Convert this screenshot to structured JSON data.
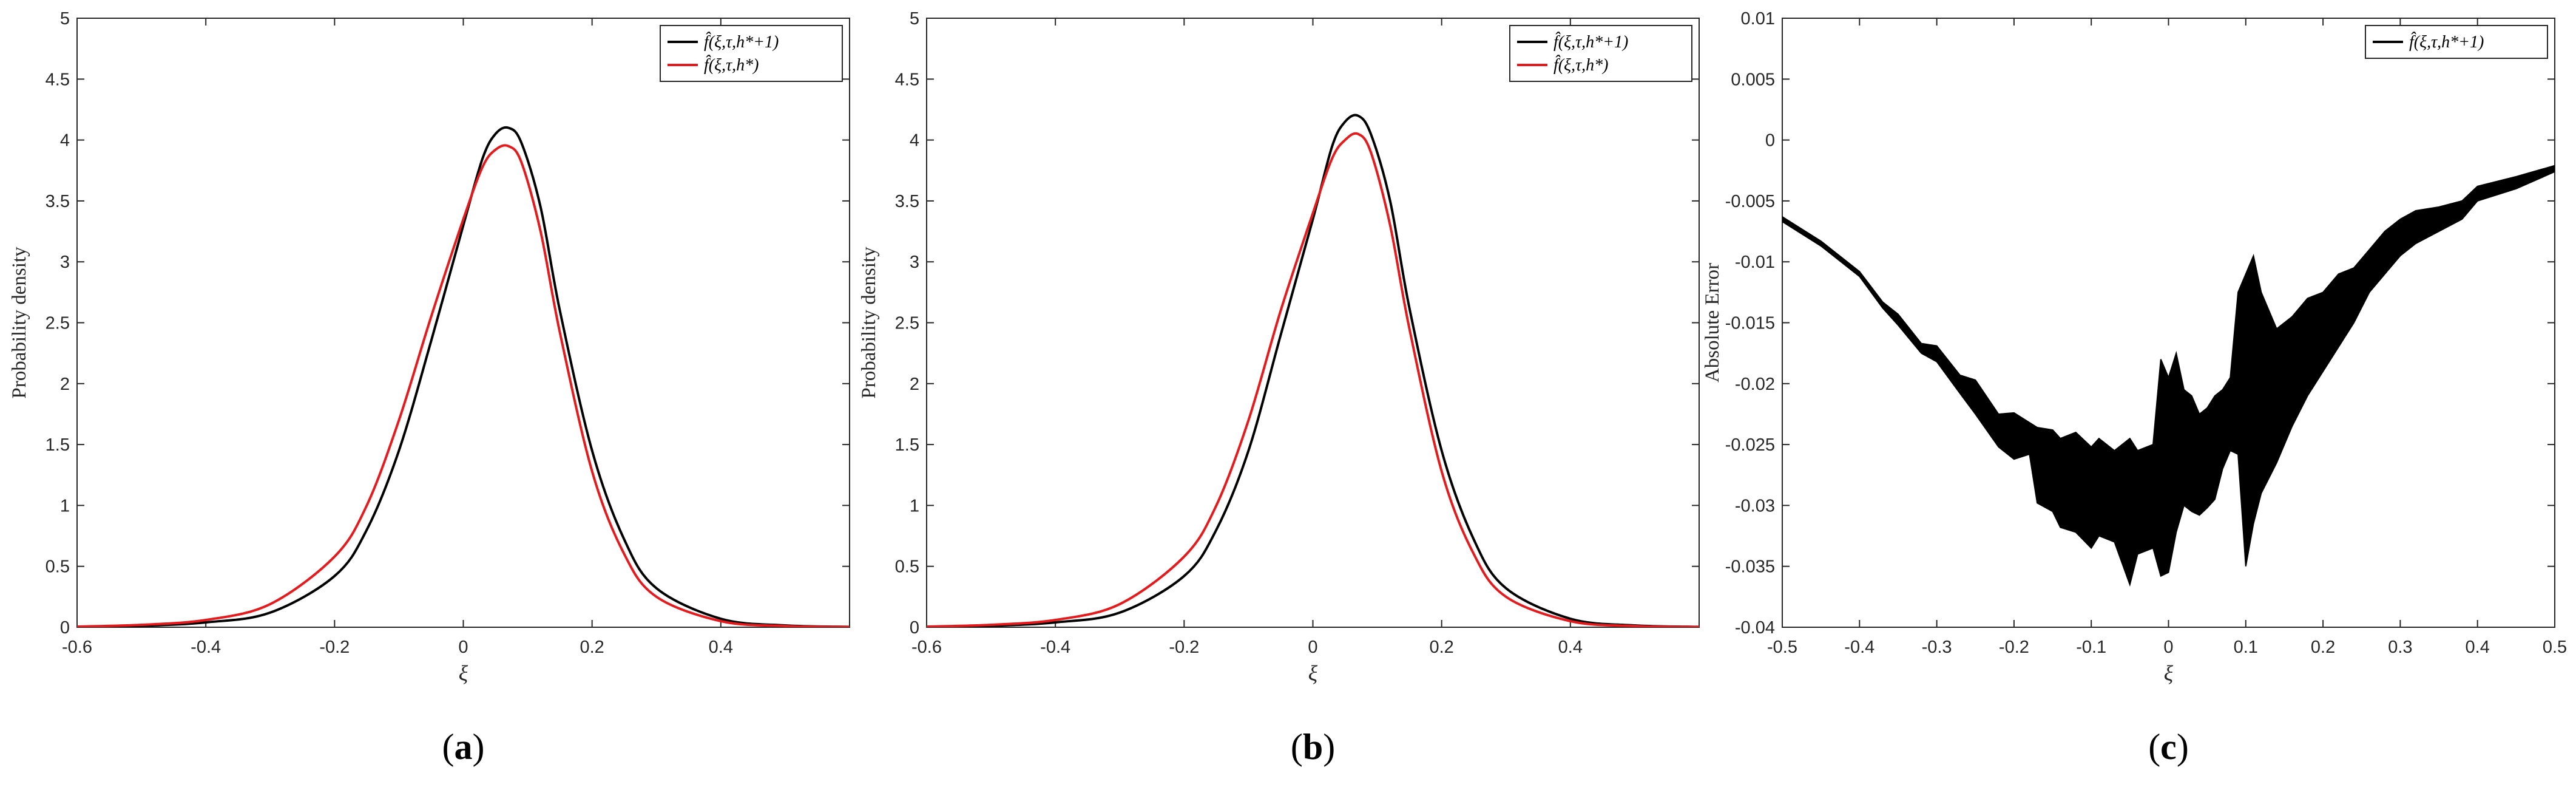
{
  "chart_data": [
    {
      "panel": "(a)",
      "caption": {
        "open": "(",
        "letter": "a",
        "close": ")"
      },
      "type": "line",
      "xlabel": "ξ",
      "ylabel": "Probability density",
      "xlim": [
        -0.6,
        0.6
      ],
      "ylim": [
        0,
        5
      ],
      "xticks": [
        -0.6,
        -0.4,
        -0.2,
        0,
        0.2,
        0.4
      ],
      "xtick_labels": [
        "-0.6",
        "-0.4",
        "-0.2",
        "0",
        "0.2",
        "0.4"
      ],
      "yticks": [
        0,
        0.5,
        1,
        1.5,
        2,
        2.5,
        3,
        3.5,
        4,
        4.5,
        5
      ],
      "ytick_labels": [
        "0",
        "0.5",
        "1",
        "1.5",
        "2",
        "2.5",
        "3",
        "3.5",
        "4",
        "4.5",
        "5"
      ],
      "legend_position": "top-right",
      "series": [
        {
          "name": "f̂(ξ,τ,h*+1)",
          "color": "#000000",
          "x": [
            -0.6,
            -0.5,
            -0.4,
            -0.3,
            -0.2,
            -0.15,
            -0.1,
            -0.05,
            0,
            0.03,
            0.05,
            0.07,
            0.09,
            0.12,
            0.15,
            0.2,
            0.25,
            0.3,
            0.4,
            0.5,
            0.6
          ],
          "y": [
            0.003,
            0.012,
            0.04,
            0.12,
            0.42,
            0.8,
            1.45,
            2.35,
            3.3,
            3.85,
            4.05,
            4.1,
            3.98,
            3.45,
            2.6,
            1.45,
            0.72,
            0.32,
            0.07,
            0.015,
            0.003
          ]
        },
        {
          "name": "f̂(ξ,τ,h*)",
          "color": "#e41a1c",
          "x": [
            -0.6,
            -0.5,
            -0.4,
            -0.3,
            -0.2,
            -0.15,
            -0.1,
            -0.05,
            0,
            0.03,
            0.05,
            0.07,
            0.09,
            0.12,
            0.15,
            0.2,
            0.25,
            0.3,
            0.4,
            0.5,
            0.6
          ],
          "y": [
            0.005,
            0.02,
            0.06,
            0.19,
            0.58,
            1.0,
            1.7,
            2.55,
            3.35,
            3.78,
            3.92,
            3.95,
            3.82,
            3.25,
            2.42,
            1.28,
            0.6,
            0.25,
            0.05,
            0.01,
            0.002
          ]
        }
      ]
    },
    {
      "panel": "(b)",
      "caption": {
        "open": "(",
        "letter": "b",
        "close": ")"
      },
      "type": "line",
      "xlabel": "ξ",
      "ylabel": "Probability density",
      "xlim": [
        -0.6,
        0.6
      ],
      "ylim": [
        0,
        5
      ],
      "xticks": [
        -0.6,
        -0.4,
        -0.2,
        0,
        0.2,
        0.4
      ],
      "xtick_labels": [
        "-0.6",
        "-0.4",
        "-0.2",
        "0",
        "0.2",
        "0.4"
      ],
      "yticks": [
        0,
        0.5,
        1,
        1.5,
        2,
        2.5,
        3,
        3.5,
        4,
        4.5,
        5
      ],
      "ytick_labels": [
        "0",
        "0.5",
        "1",
        "1.5",
        "2",
        "2.5",
        "3",
        "3.5",
        "4",
        "4.5",
        "5"
      ],
      "legend_position": "top-right",
      "series": [
        {
          "name": "f̂(ξ,τ,h*+1)",
          "color": "#000000",
          "x": [
            -0.6,
            -0.5,
            -0.4,
            -0.3,
            -0.2,
            -0.15,
            -0.1,
            -0.05,
            0,
            0.03,
            0.05,
            0.07,
            0.09,
            0.12,
            0.15,
            0.2,
            0.25,
            0.3,
            0.4,
            0.5,
            0.6
          ],
          "y": [
            0.003,
            0.012,
            0.04,
            0.12,
            0.42,
            0.8,
            1.45,
            2.4,
            3.35,
            3.95,
            4.15,
            4.2,
            4.05,
            3.5,
            2.62,
            1.45,
            0.72,
            0.32,
            0.07,
            0.015,
            0.003
          ]
        },
        {
          "name": "f̂(ξ,τ,h*)",
          "color": "#e41a1c",
          "x": [
            -0.6,
            -0.5,
            -0.4,
            -0.3,
            -0.2,
            -0.15,
            -0.1,
            -0.05,
            0,
            0.03,
            0.05,
            0.07,
            0.09,
            0.12,
            0.15,
            0.2,
            0.25,
            0.3,
            0.4,
            0.5,
            0.6
          ],
          "y": [
            0.005,
            0.02,
            0.06,
            0.19,
            0.58,
            1.0,
            1.7,
            2.6,
            3.4,
            3.85,
            4.0,
            4.05,
            3.9,
            3.3,
            2.45,
            1.28,
            0.6,
            0.25,
            0.05,
            0.01,
            0.002
          ]
        }
      ]
    },
    {
      "panel": "(c)",
      "caption": {
        "open": "(",
        "letter": "c",
        "close": ")"
      },
      "type": "line",
      "xlabel": "ξ",
      "ylabel": "Absolute Error",
      "xlim": [
        -0.5,
        0.5
      ],
      "ylim": [
        -0.04,
        0.01
      ],
      "xticks": [
        -0.5,
        -0.4,
        -0.3,
        -0.2,
        -0.1,
        0,
        0.1,
        0.2,
        0.3,
        0.4,
        0.5
      ],
      "xtick_labels": [
        "-0.5",
        "-0.4",
        "-0.3",
        "-0.2",
        "-0.1",
        "0",
        "0.1",
        "0.2",
        "0.3",
        "0.4",
        "0.5"
      ],
      "yticks": [
        -0.04,
        -0.035,
        -0.03,
        -0.025,
        -0.02,
        -0.015,
        -0.01,
        -0.005,
        0,
        0.005,
        0.01
      ],
      "ytick_labels": [
        "-0.04",
        "-0.035",
        "-0.03",
        "-0.025",
        "-0.02",
        "-0.015",
        "-0.01",
        "-0.005",
        "0",
        "0.005",
        "0.01"
      ],
      "legend_position": "top-right",
      "series": [
        {
          "name": "f̂(ξ,τ,h*+1)",
          "color": "#000000",
          "x": [
            -0.5,
            -0.45,
            -0.4,
            -0.37,
            -0.35,
            -0.32,
            -0.3,
            -0.27,
            -0.25,
            -0.22,
            -0.2,
            -0.18,
            -0.17,
            -0.15,
            -0.14,
            -0.12,
            -0.1,
            -0.09,
            -0.07,
            -0.05,
            -0.04,
            -0.02,
            -0.01,
            0.0,
            0.01,
            0.02,
            0.03,
            0.04,
            0.05,
            0.06,
            0.07,
            0.08,
            0.09,
            0.1,
            0.11,
            0.12,
            0.14,
            0.16,
            0.18,
            0.2,
            0.22,
            0.24,
            0.26,
            0.28,
            0.3,
            0.32,
            0.35,
            0.38,
            0.4,
            0.45,
            0.5
          ],
          "y": [
            -0.0065,
            -0.0085,
            -0.011,
            -0.0135,
            -0.0145,
            -0.017,
            -0.0175,
            -0.0205,
            -0.0215,
            -0.0235,
            -0.0245,
            -0.024,
            -0.0265,
            -0.0265,
            -0.0275,
            -0.027,
            -0.0295,
            -0.029,
            -0.0295,
            -0.029,
            -0.0305,
            -0.0295,
            -0.0235,
            -0.031,
            -0.023,
            -0.028,
            -0.0255,
            -0.0285,
            -0.029,
            -0.0235,
            -0.0255,
            -0.0245,
            -0.0205,
            -0.028,
            -0.027,
            -0.022,
            -0.021,
            -0.0185,
            -0.0175,
            -0.015,
            -0.0135,
            -0.0125,
            -0.0105,
            -0.0095,
            -0.0085,
            -0.0075,
            -0.0065,
            -0.006,
            -0.0045,
            -0.0035,
            -0.0023
          ]
        }
      ],
      "band_upper": [
        -0.0063,
        -0.0083,
        -0.0108,
        -0.0133,
        -0.0143,
        -0.0167,
        -0.0169,
        -0.0193,
        -0.0197,
        -0.0225,
        -0.0224,
        -0.0232,
        -0.0236,
        -0.0238,
        -0.0245,
        -0.024,
        -0.0252,
        -0.0245,
        -0.0255,
        -0.0245,
        -0.0255,
        -0.025,
        -0.018,
        -0.0195,
        -0.0175,
        -0.0205,
        -0.021,
        -0.0225,
        -0.022,
        -0.021,
        -0.0205,
        -0.0195,
        -0.0125,
        -0.011,
        -0.0095,
        -0.0125,
        -0.0155,
        -0.0145,
        -0.013,
        -0.0125,
        -0.011,
        -0.0105,
        -0.009,
        -0.0075,
        -0.0065,
        -0.0058,
        -0.0055,
        -0.005,
        -0.0038,
        -0.003,
        -0.0021
      ],
      "band_lower": [
        -0.0067,
        -0.0087,
        -0.0112,
        -0.0138,
        -0.0152,
        -0.0175,
        -0.0182,
        -0.0208,
        -0.0225,
        -0.0252,
        -0.0262,
        -0.0258,
        -0.0298,
        -0.0305,
        -0.0318,
        -0.0322,
        -0.0335,
        -0.0325,
        -0.033,
        -0.0365,
        -0.034,
        -0.0335,
        -0.0358,
        -0.0355,
        -0.0322,
        -0.03,
        -0.0305,
        -0.0308,
        -0.0302,
        -0.0295,
        -0.027,
        -0.0255,
        -0.0258,
        -0.035,
        -0.0315,
        -0.029,
        -0.0265,
        -0.0235,
        -0.021,
        -0.019,
        -0.017,
        -0.015,
        -0.0125,
        -0.011,
        -0.0095,
        -0.0085,
        -0.0075,
        -0.0065,
        -0.005,
        -0.004,
        -0.0026
      ]
    }
  ]
}
